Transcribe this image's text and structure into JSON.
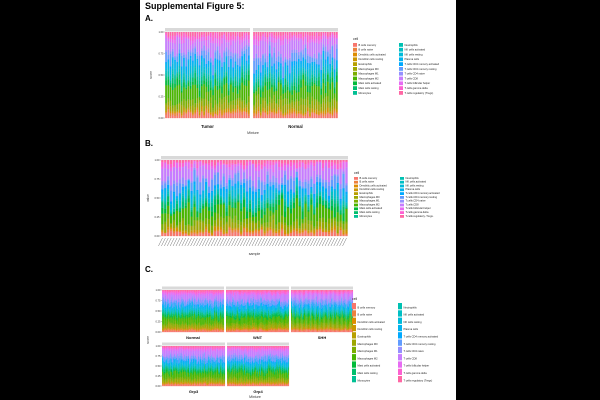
{
  "figure_title": "Supplemental Figure 5:",
  "panels": [
    {
      "label": "A."
    },
    {
      "label": "B."
    },
    {
      "label": "C."
    }
  ],
  "chart_data": [
    {
      "type": "bar",
      "stacked": true,
      "facets": [
        "Tumor",
        "Normal"
      ],
      "xlabel": "Mixture",
      "ylabel": "score",
      "yticks": [
        "0.00",
        "0.25",
        "0.50",
        "0.75",
        "1.00"
      ],
      "ylim": [
        0,
        1
      ],
      "bars_per_facet": 38,
      "legend_title": "cell",
      "legend_position": "right",
      "legend_columns": 2,
      "legend": [
        {
          "name": "B cells memory",
          "color": "#f8766d"
        },
        {
          "name": "B cells naive",
          "color": "#ed813e"
        },
        {
          "name": "Dendritic cells activated",
          "color": "#de8c00"
        },
        {
          "name": "Dendritic cells resting",
          "color": "#cd9600"
        },
        {
          "name": "Eosinophils",
          "color": "#b79f00"
        },
        {
          "name": "Macrophages M0",
          "color": "#9da700"
        },
        {
          "name": "Macrophages M1",
          "color": "#7cae00"
        },
        {
          "name": "Macrophages M2",
          "color": "#49b500"
        },
        {
          "name": "Mast cells activated",
          "color": "#00ba38"
        },
        {
          "name": "Mast cells resting",
          "color": "#00be6c"
        },
        {
          "name": "Monocytes",
          "color": "#00c094"
        },
        {
          "name": "Neutrophils",
          "color": "#00c1b2"
        },
        {
          "name": "NK cells activated",
          "color": "#00bfc4"
        },
        {
          "name": "NK cells resting",
          "color": "#00bbdb"
        },
        {
          "name": "Plasma cells",
          "color": "#00b4ef"
        },
        {
          "name": "T cells CD4 memory activated",
          "color": "#00a9ff"
        },
        {
          "name": "T cells CD4 memory resting",
          "color": "#619cff"
        },
        {
          "name": "T cells CD4 naive",
          "color": "#9590ff"
        },
        {
          "name": "T cells CD8",
          "color": "#c77cff"
        },
        {
          "name": "T cells follicular helper",
          "color": "#e76bf3"
        },
        {
          "name": "T cells gamma delta",
          "color": "#fd61d1"
        },
        {
          "name": "T cells regulatory (Tregs)",
          "color": "#ff67a4"
        }
      ]
    },
    {
      "type": "bar",
      "stacked": true,
      "xlabel": "sample",
      "ylabel": "value",
      "yticks": [
        "0.00",
        "0.25",
        "0.50",
        "0.75",
        "1.00"
      ],
      "ylim": [
        0,
        1
      ],
      "bar_count": 64,
      "legend_title": "cell",
      "legend_position": "right",
      "legend_columns": 2,
      "legend": [
        {
          "name": "B.cells.memory",
          "color": "#f8766d"
        },
        {
          "name": "B.cells.naive",
          "color": "#ed813e"
        },
        {
          "name": "Dendritic.cells.activated",
          "color": "#de8c00"
        },
        {
          "name": "Dendritic.cells.resting",
          "color": "#cd9600"
        },
        {
          "name": "Eosinophils",
          "color": "#b79f00"
        },
        {
          "name": "Macrophages.M0",
          "color": "#9da700"
        },
        {
          "name": "Macrophages.M1",
          "color": "#7cae00"
        },
        {
          "name": "Macrophages.M2",
          "color": "#49b500"
        },
        {
          "name": "Mast.cells.activated",
          "color": "#00ba38"
        },
        {
          "name": "Mast.cells.resting",
          "color": "#00be6c"
        },
        {
          "name": "Monocytes",
          "color": "#00c094"
        },
        {
          "name": "Neutrophils",
          "color": "#00c1b2"
        },
        {
          "name": "NK.cells.activated",
          "color": "#00bfc4"
        },
        {
          "name": "NK.cells.resting",
          "color": "#00bbdb"
        },
        {
          "name": "Plasma.cells",
          "color": "#00b4ef"
        },
        {
          "name": "T.cells.CD4.memory.activated",
          "color": "#00a9ff"
        },
        {
          "name": "T.cells.CD4.memory.resting",
          "color": "#619cff"
        },
        {
          "name": "T.cells.CD4.naive",
          "color": "#9590ff"
        },
        {
          "name": "T.cells.CD8",
          "color": "#c77cff"
        },
        {
          "name": "T.cells.follicular.helper",
          "color": "#e76bf3"
        },
        {
          "name": "T.cells.gamma.delta",
          "color": "#fd61d1"
        },
        {
          "name": "T.cells.regulatory..Tregs.",
          "color": "#ff67a4"
        }
      ]
    },
    {
      "type": "bar",
      "stacked": true,
      "facets": [
        "Normal",
        "WNT",
        "SHH",
        "Grp3",
        "Grp4"
      ],
      "xlabel": "Mixture",
      "ylabel": "score",
      "yticks": [
        "0.00",
        "0.25",
        "0.50",
        "0.75",
        "1.00"
      ],
      "ylim": [
        0,
        1
      ],
      "legend_title": "cell",
      "legend_position": "right",
      "legend_columns": 2,
      "legend": [
        {
          "name": "B cells memory",
          "color": "#f8766d"
        },
        {
          "name": "B cells naive",
          "color": "#ed813e"
        },
        {
          "name": "Dendritic cells activated",
          "color": "#de8c00"
        },
        {
          "name": "Dendritic cells resting",
          "color": "#cd9600"
        },
        {
          "name": "Eosinophils",
          "color": "#b79f00"
        },
        {
          "name": "Macrophages M0",
          "color": "#9da700"
        },
        {
          "name": "Macrophages M1",
          "color": "#7cae00"
        },
        {
          "name": "Macrophages M2",
          "color": "#49b500"
        },
        {
          "name": "Mast cells activated",
          "color": "#00ba38"
        },
        {
          "name": "Mast cells resting",
          "color": "#00be6c"
        },
        {
          "name": "Monocytes",
          "color": "#00c094"
        },
        {
          "name": "Neutrophils",
          "color": "#00c1b2"
        },
        {
          "name": "NK cells activated",
          "color": "#00bfc4"
        },
        {
          "name": "NK cells resting",
          "color": "#00bbdb"
        },
        {
          "name": "Plasma cells",
          "color": "#00b4ef"
        },
        {
          "name": "T cells CD4 memory activated",
          "color": "#00a9ff"
        },
        {
          "name": "T cells CD4 memory resting",
          "color": "#619cff"
        },
        {
          "name": "T cells CD4 naive",
          "color": "#9590ff"
        },
        {
          "name": "T cells CD8",
          "color": "#c77cff"
        },
        {
          "name": "T cells follicular helper",
          "color": "#e76bf3"
        },
        {
          "name": "T cells gamma delta",
          "color": "#fd61d1"
        },
        {
          "name": "T cells regulatory (Tregs)",
          "color": "#ff67a4"
        }
      ]
    }
  ]
}
